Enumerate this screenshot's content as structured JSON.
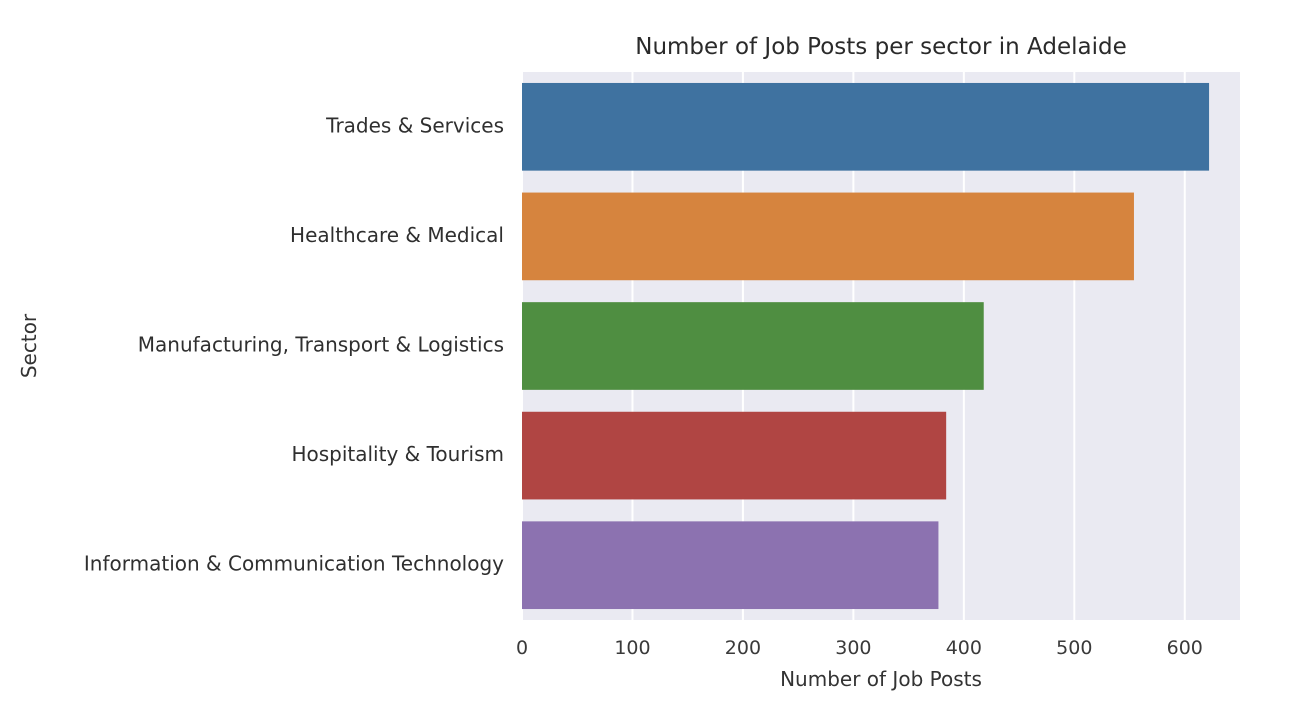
{
  "chart_data": {
    "type": "bar",
    "orientation": "horizontal",
    "title": "Number of Job Posts per sector in Adelaide",
    "xlabel": "Number of Job Posts",
    "ylabel": "Sector",
    "categories": [
      "Trades & Services",
      "Healthcare & Medical",
      "Manufacturing, Transport & Logistics",
      "Hospitality & Tourism",
      "Information & Communication Technology"
    ],
    "values": [
      622,
      554,
      418,
      384,
      377
    ],
    "colors": [
      "#3f72a0",
      "#d6843e",
      "#4f8e41",
      "#b04543",
      "#8c72b0"
    ],
    "xlim": [
      0,
      650
    ],
    "xticks": [
      0,
      100,
      200,
      300,
      400,
      500,
      600
    ],
    "grid": true,
    "background": "#eaeaf2"
  }
}
